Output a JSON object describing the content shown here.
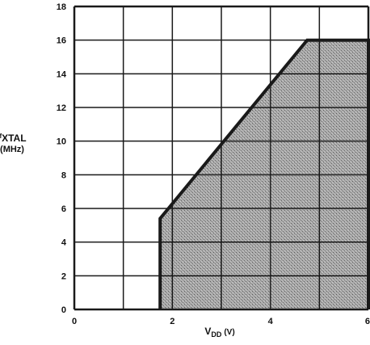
{
  "chart_data": {
    "type": "area",
    "title": "",
    "xlabel": {
      "main": "V",
      "sub": "DD",
      "unit": "(V)"
    },
    "ylabel": {
      "prefix": "f",
      "main": "XTAL",
      "unit": "(MHz)"
    },
    "xlim": [
      0,
      6
    ],
    "ylim": [
      0,
      18
    ],
    "x_ticks": [
      0,
      2,
      4,
      6
    ],
    "y_ticks": [
      0,
      2,
      4,
      6,
      8,
      10,
      12,
      14,
      16,
      18
    ],
    "x_grid": [
      0,
      1,
      2,
      3,
      4,
      5,
      6
    ],
    "y_grid": [
      0,
      2,
      4,
      6,
      8,
      10,
      12,
      14,
      16,
      18
    ],
    "grid": true,
    "series": [
      {
        "x": [
          1.75,
          1.75,
          4.75,
          6.0,
          6.0
        ],
        "y": [
          0,
          5.4,
          16.0,
          16.0,
          0
        ]
      }
    ],
    "colors": {
      "fill": "#9c9c9c",
      "outline": "#1a1a1a",
      "grid": "#1a1a1a"
    }
  }
}
